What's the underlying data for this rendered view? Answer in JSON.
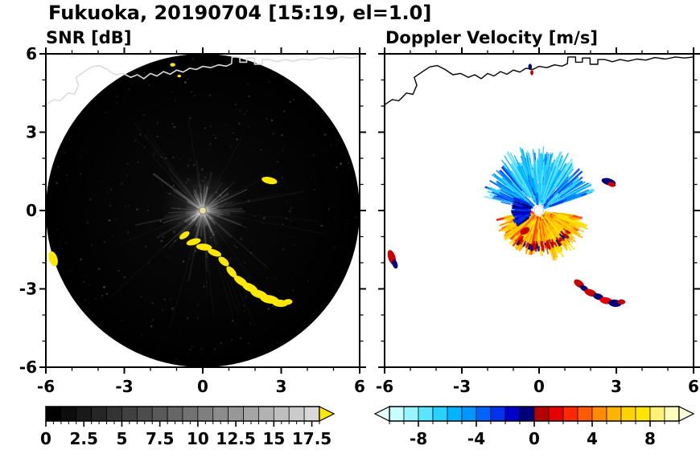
{
  "title": "Fukuoka, 20190704 [15:19, el=1.0]",
  "panels": {
    "left": {
      "title": "SNR [dB]"
    },
    "right": {
      "title": "Doppler Velocity [m/s]"
    }
  },
  "coastline": [
    [
      -6,
      4.05
    ],
    [
      -5.7,
      4.25
    ],
    [
      -5.45,
      4.2
    ],
    [
      -5.15,
      4.5
    ],
    [
      -4.9,
      4.45
    ],
    [
      -4.75,
      4.8
    ],
    [
      -4.85,
      5.1
    ],
    [
      -4.55,
      5.3
    ],
    [
      -4.25,
      5.5
    ],
    [
      -3.95,
      5.55
    ],
    [
      -3.65,
      5.4
    ],
    [
      -3.35,
      5.2
    ],
    [
      -3.05,
      5.25
    ],
    [
      -2.75,
      5.1
    ],
    [
      -2.5,
      5.2
    ],
    [
      -2.25,
      5.05
    ],
    [
      -2,
      5.25
    ],
    [
      -1.75,
      5.15
    ],
    [
      -1.5,
      5.32
    ],
    [
      -1.25,
      5.22
    ],
    [
      -1,
      5.38
    ],
    [
      -0.75,
      5.3
    ],
    [
      -0.5,
      5.45
    ],
    [
      -0.25,
      5.4
    ],
    [
      0,
      5.52
    ],
    [
      0.3,
      5.47
    ],
    [
      0.6,
      5.58
    ],
    [
      0.9,
      5.53
    ],
    [
      1.1,
      5.62
    ],
    [
      1.12,
      5.88
    ],
    [
      1.42,
      5.88
    ],
    [
      1.42,
      5.68
    ],
    [
      1.68,
      5.68
    ],
    [
      1.68,
      5.84
    ],
    [
      1.98,
      5.84
    ],
    [
      1.98,
      5.6
    ],
    [
      2.28,
      5.6
    ],
    [
      2.28,
      5.78
    ],
    [
      2.55,
      5.78
    ],
    [
      2.85,
      5.7
    ],
    [
      3.15,
      5.78
    ],
    [
      3.45,
      5.72
    ],
    [
      3.8,
      5.8
    ],
    [
      4.15,
      5.76
    ],
    [
      4.5,
      5.86
    ],
    [
      4.9,
      5.8
    ],
    [
      5.3,
      5.88
    ],
    [
      5.65,
      5.84
    ],
    [
      6,
      5.88
    ]
  ],
  "chart_data": [
    {
      "type": "heatmap",
      "title": "SNR [dB]",
      "xlim": [
        -6,
        6
      ],
      "ylim": [
        -6,
        6
      ],
      "xticks": [
        -6,
        -3,
        0,
        3,
        6
      ],
      "xtick_labels": [
        "-6",
        "-3",
        "0",
        "3",
        "6"
      ],
      "yticks": [
        -6,
        -3,
        0,
        3,
        6
      ],
      "ytick_labels": [
        "-6",
        "-3",
        "0",
        "3",
        "6"
      ],
      "minor_tick_step": 1,
      "radar_disk": {
        "cx": 0,
        "cy": 0,
        "radius": 6,
        "base_color": "#000000"
      },
      "coastline_color": "#dcdcdc",
      "echo_color": "#ffe800",
      "center_echo": {
        "x": 0,
        "y": 0,
        "r": 0.12,
        "color": "#e8e09b"
      },
      "echoes": [
        [
          -0.7,
          -0.95,
          0.22,
          0.11,
          35
        ],
        [
          -0.35,
          -1.2,
          0.28,
          0.12,
          15
        ],
        [
          0.05,
          -1.4,
          0.3,
          0.13,
          -5
        ],
        [
          0.45,
          -1.62,
          0.27,
          0.12,
          -20
        ],
        [
          0.8,
          -1.95,
          0.24,
          0.13,
          -40
        ],
        [
          1.1,
          -2.35,
          0.26,
          0.13,
          -50
        ],
        [
          1.45,
          -2.7,
          0.3,
          0.14,
          -35
        ],
        [
          1.8,
          -2.95,
          0.32,
          0.15,
          -25
        ],
        [
          2.15,
          -3.2,
          0.34,
          0.15,
          -18
        ],
        [
          2.55,
          -3.4,
          0.36,
          0.16,
          -10
        ],
        [
          2.95,
          -3.55,
          0.3,
          0.14,
          -5
        ],
        [
          3.25,
          -3.5,
          0.18,
          0.11,
          5
        ],
        [
          2.55,
          1.15,
          0.3,
          0.13,
          -12
        ],
        [
          -5.72,
          -1.85,
          0.16,
          0.3,
          18
        ],
        [
          -1.15,
          5.58,
          0.1,
          0.07,
          0
        ],
        [
          -0.9,
          5.15,
          0.07,
          0.05,
          0
        ]
      ],
      "colorbar": {
        "range": [
          0,
          18
        ],
        "cells": 18,
        "start_color": "#000000",
        "end_color": "#d8d8d8",
        "over_color": "#ffe800",
        "ticks": [
          0,
          2.5,
          5,
          7.5,
          10,
          12.5,
          15,
          17.5
        ],
        "tick_labels": [
          "0",
          "2.5",
          "5",
          "7.5",
          "10",
          "12.5",
          "15",
          "17.5"
        ],
        "minor_step": 0.5
      }
    },
    {
      "type": "heatmap",
      "title": "Doppler Velocity [m/s]",
      "xlim": [
        -6,
        6
      ],
      "ylim": [
        -6,
        6
      ],
      "xticks": [
        -6,
        -3,
        0,
        3,
        6
      ],
      "xtick_labels": [
        "-6",
        "-3",
        "0",
        "3",
        "6"
      ],
      "yticks": [
        -6,
        -3,
        0,
        3,
        6
      ],
      "minor_tick_step": 1,
      "coastline_color": "#000000",
      "center_hole": {
        "x": 0,
        "y": 0,
        "r": 0.18,
        "color": "#ffffff"
      },
      "fans": [
        {
          "name": "upper-blue-fan",
          "a0": 15,
          "a1": 168,
          "r0": 0.2,
          "r1": 2.3,
          "count": 240,
          "wmin": 1.2,
          "wmax": 2.6,
          "colors": [
            "#28d2ff",
            "#00b4ff",
            "#0064ff",
            "#5ae6ff",
            "#0096ff",
            "#0032f0"
          ]
        },
        {
          "name": "upper-cyan-long",
          "a0": 55,
          "a1": 130,
          "r0": 0.3,
          "r1": 2.6,
          "count": 70,
          "wmin": 1.2,
          "wmax": 2.2,
          "colors": [
            "#5ae6ff",
            "#28d2ff",
            "#00b4ff"
          ]
        },
        {
          "name": "lower-orange-fan",
          "a0": 190,
          "a1": 352,
          "r0": 0.2,
          "r1": 1.75,
          "count": 320,
          "wmin": 1.4,
          "wmax": 3.0,
          "colors": [
            "#ff8c00",
            "#ffb400",
            "#ffd200",
            "#ff5a00",
            "#ffe600",
            "#ff2800"
          ]
        },
        {
          "name": "lower-yellow-long",
          "a0": 285,
          "a1": 345,
          "r0": 0.5,
          "r1": 2.05,
          "count": 70,
          "wmin": 1.3,
          "wmax": 2.4,
          "colors": [
            "#ffd200",
            "#ffe600",
            "#ffb400"
          ]
        },
        {
          "name": "left-navy-cluster",
          "a0": 150,
          "a1": 215,
          "r0": 0.3,
          "r1": 1.1,
          "count": 90,
          "wmin": 1.6,
          "wmax": 3.2,
          "colors": [
            "#000078",
            "#0000c8",
            "#0032f0"
          ]
        },
        {
          "name": "lower-red-rim",
          "a0": 235,
          "a1": 325,
          "r0": 1.15,
          "r1": 1.6,
          "count": 70,
          "wmin": 1.5,
          "wmax": 2.6,
          "colors": [
            "#c80000",
            "#e60000",
            "#000078"
          ]
        }
      ],
      "blobs": [
        [
          1.55,
          -2.8,
          0.22,
          0.13,
          -35,
          "#c80000"
        ],
        [
          1.75,
          -2.98,
          0.18,
          0.1,
          -30,
          "#000078"
        ],
        [
          2.0,
          -3.15,
          0.25,
          0.13,
          -20,
          "#c80000"
        ],
        [
          2.3,
          -3.3,
          0.2,
          0.12,
          -15,
          "#000078"
        ],
        [
          2.6,
          -3.45,
          0.25,
          0.13,
          -10,
          "#e60000"
        ],
        [
          2.95,
          -3.55,
          0.25,
          0.14,
          -5,
          "#000078"
        ],
        [
          3.2,
          -3.5,
          0.15,
          0.1,
          0,
          "#c80000"
        ],
        [
          -5.72,
          -1.8,
          0.14,
          0.3,
          18,
          "#c80000"
        ],
        [
          -5.6,
          -2.05,
          0.1,
          0.18,
          18,
          "#000078"
        ],
        [
          2.7,
          1.1,
          0.28,
          0.13,
          -15,
          "#000078"
        ],
        [
          2.82,
          1.0,
          0.16,
          0.09,
          -15,
          "#c80000"
        ],
        [
          -0.35,
          5.5,
          0.07,
          0.12,
          0,
          "#000078"
        ],
        [
          -0.28,
          5.28,
          0.06,
          0.1,
          0,
          "#c80000"
        ],
        [
          -0.55,
          -0.78,
          0.2,
          0.12,
          30,
          "#c80000"
        ]
      ],
      "colorbar": {
        "range": [
          -10,
          10
        ],
        "colors": [
          "#c8ffff",
          "#96f5ff",
          "#5ae6ff",
          "#28d2ff",
          "#00b4ff",
          "#0096ff",
          "#0064ff",
          "#0032f0",
          "#0000c8",
          "#000078",
          "#b40000",
          "#e60000",
          "#ff2800",
          "#ff5a00",
          "#ff8c00",
          "#ffb400",
          "#ffd200",
          "#ffe600",
          "#fff078",
          "#ffffbe"
        ],
        "under_color": "#e6ffff",
        "over_color": "#ffffdc",
        "ticks": [
          -8,
          -4,
          0,
          4,
          8
        ],
        "tick_labels": [
          "-8",
          "-4",
          "0",
          "4",
          "8"
        ],
        "minor_step": 1
      }
    }
  ]
}
